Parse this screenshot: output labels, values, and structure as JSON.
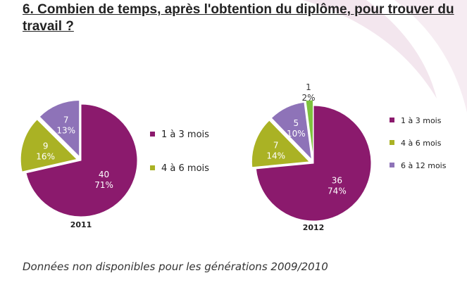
{
  "title": "6. Combien de temps, après l'obtention du diplôme, pour trouver du travail ?",
  "footnote": "Données non disponibles pour les générations 2009/2010",
  "colors": {
    "cat1": "#8b1a6d",
    "cat2": "#aab224",
    "cat3": "#8e73b8",
    "cat4": "#7ec23e"
  },
  "chart_data": [
    {
      "type": "pie",
      "title": "2011",
      "slices": [
        {
          "label": "1 à 3 mois",
          "count": "40",
          "percent": "71%",
          "value": 40
        },
        {
          "label": "4 à 6 mois",
          "count": "9",
          "percent": "16%",
          "value": 9
        },
        {
          "label": "",
          "count": "7",
          "percent": "13%",
          "value": 7
        }
      ],
      "legend": [
        "1 à 3 mois",
        "4 à 6 mois"
      ]
    },
    {
      "type": "pie",
      "title": "2012",
      "slices": [
        {
          "label": "1 à 3 mois",
          "count": "36",
          "percent": "74%",
          "value": 36
        },
        {
          "label": "4 à 6 mois",
          "count": "7",
          "percent": "14%",
          "value": 7
        },
        {
          "label": "6 à 12 mois",
          "count": "5",
          "percent": "10%",
          "value": 5
        },
        {
          "label": "",
          "count": "1",
          "percent": "2%",
          "value": 1
        }
      ],
      "legend": [
        "1 à 3 mois",
        "4 à 6 mois",
        "6 à 12 mois"
      ]
    }
  ]
}
